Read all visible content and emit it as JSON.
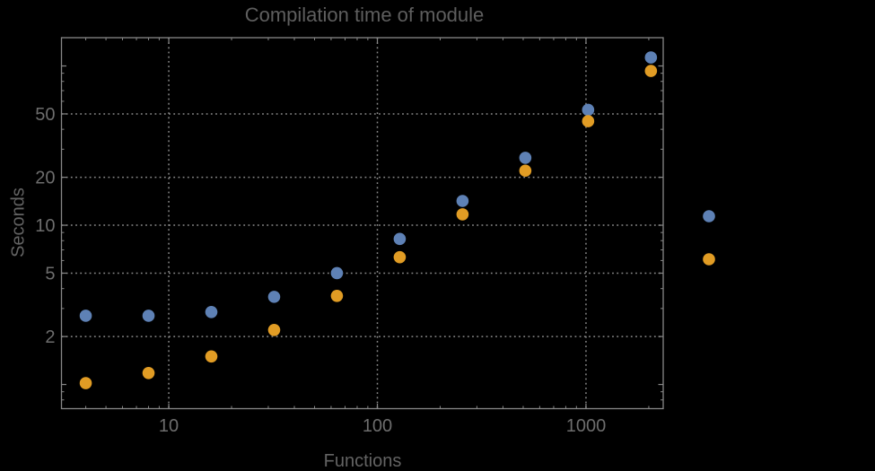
{
  "colors": {
    "background": "#000000",
    "frame": "#878787",
    "grid": "#8a8a8a",
    "title_text": "#5e5e5e",
    "axis_label_text": "#636363",
    "tick_label_text": "#6d6d6d",
    "series1": "#5E81B5",
    "series2": "#E19C24"
  },
  "chart_data": {
    "type": "scatter",
    "title": "Compilation time of module",
    "xlabel": "Functions",
    "ylabel": "Seconds",
    "x_scale": "log",
    "y_scale": "log",
    "xlim": [
      3.06,
      2345
    ],
    "ylim": [
      0.705,
      150.5
    ],
    "grid": {
      "on": true,
      "style": "dotted",
      "x_values": [
        10,
        100,
        1000
      ],
      "y_values": [
        2,
        5,
        10,
        20,
        50
      ]
    },
    "x": [
      4,
      8,
      16,
      32,
      64,
      128,
      256,
      512,
      1024,
      2048
    ],
    "series": [
      {
        "name": "series-1",
        "color": "#5E81B5",
        "values": [
          2.7,
          2.7,
          2.85,
          3.55,
          5.0,
          8.2,
          14.2,
          26.5,
          53,
          113
        ]
      },
      {
        "name": "series-2",
        "color": "#E19C24",
        "values": [
          1.02,
          1.18,
          1.5,
          2.2,
          3.6,
          6.3,
          11.7,
          22,
          45,
          93
        ]
      }
    ],
    "x_ticks": {
      "major": [
        {
          "value": 10,
          "label": "10"
        },
        {
          "value": 100,
          "label": "100"
        },
        {
          "value": 1000,
          "label": "1000"
        }
      ],
      "minor": [
        4,
        5,
        6,
        7,
        8,
        9,
        20,
        30,
        40,
        50,
        60,
        70,
        80,
        90,
        200,
        300,
        400,
        500,
        600,
        700,
        800,
        900,
        2000
      ]
    },
    "y_ticks": {
      "major": [
        {
          "value": 1,
          "label": ""
        },
        {
          "value": 2,
          "label": "2"
        },
        {
          "value": 5,
          "label": "5"
        },
        {
          "value": 10,
          "label": "10"
        },
        {
          "value": 20,
          "label": "20"
        },
        {
          "value": 50,
          "label": "50"
        },
        {
          "value": 100,
          "label": ""
        }
      ],
      "minor": [
        0.8,
        0.9,
        3,
        4,
        6,
        7,
        8,
        9,
        30,
        40,
        60,
        70,
        80,
        90
      ]
    },
    "legend": {
      "position": "right",
      "markers": [
        {
          "series": "series-1",
          "color": "#5E81B5",
          "label": ""
        },
        {
          "series": "series-2",
          "color": "#E19C24",
          "label": ""
        }
      ]
    }
  }
}
